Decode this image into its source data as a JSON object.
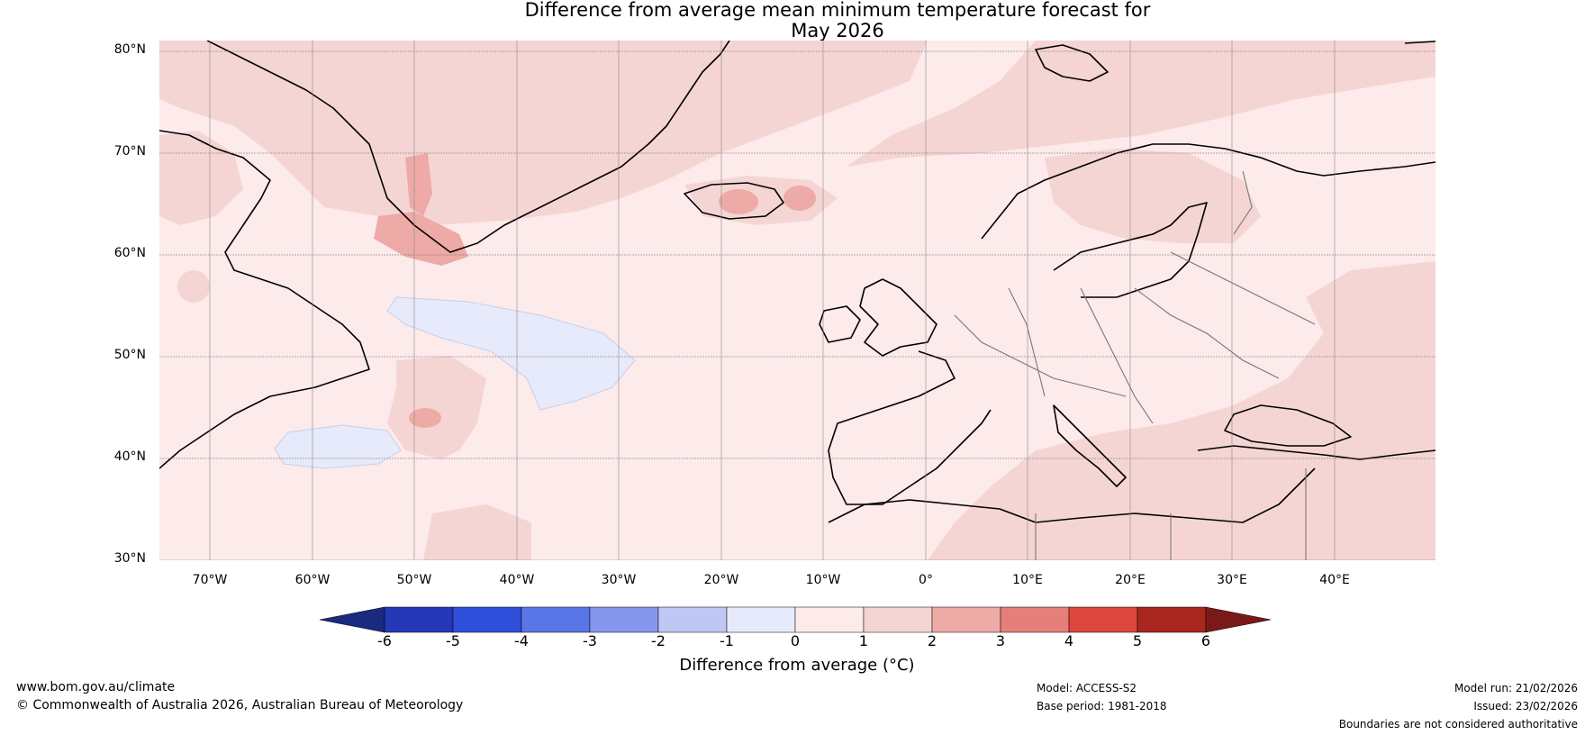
{
  "title": {
    "line1": "Difference from average mean minimum temperature forecast for",
    "line2": "May 2026"
  },
  "map": {
    "lat_labels": [
      "80°N",
      "70°N",
      "60°N",
      "50°N",
      "40°N",
      "30°N"
    ],
    "lon_labels": [
      "70°W",
      "60°W",
      "50°W",
      "40°W",
      "30°W",
      "20°W",
      "10°W",
      "0°",
      "10°E",
      "20°E",
      "30°E",
      "40°E"
    ]
  },
  "colorbar": {
    "ticks": [
      "-6",
      "-5",
      "-4",
      "-3",
      "-2",
      "-1",
      "0",
      "1",
      "2",
      "3",
      "4",
      "5",
      "6"
    ],
    "colors": [
      "#1a2a80",
      "#2438b8",
      "#2f4fdb",
      "#5a76e6",
      "#8497ec",
      "#bfc7f3",
      "#e6eafb",
      "#fcebea",
      "#f5d5d3",
      "#eeaaa6",
      "#e67f79",
      "#dc463c",
      "#a9271f",
      "#7a1a18"
    ],
    "label": "Difference from average (°C)"
  },
  "footer": {
    "website": "www.bom.gov.au/climate",
    "copyright": "© Commonwealth of Australia 2026, Australian Bureau of Meteorology",
    "model": "Model: ACCESS-S2",
    "base_period": "Base period: 1981-2018",
    "model_run": "Model run: 21/02/2026",
    "issued": "Issued: 23/02/2026",
    "disclaimer": "Boundaries are not considered authoritative"
  }
}
